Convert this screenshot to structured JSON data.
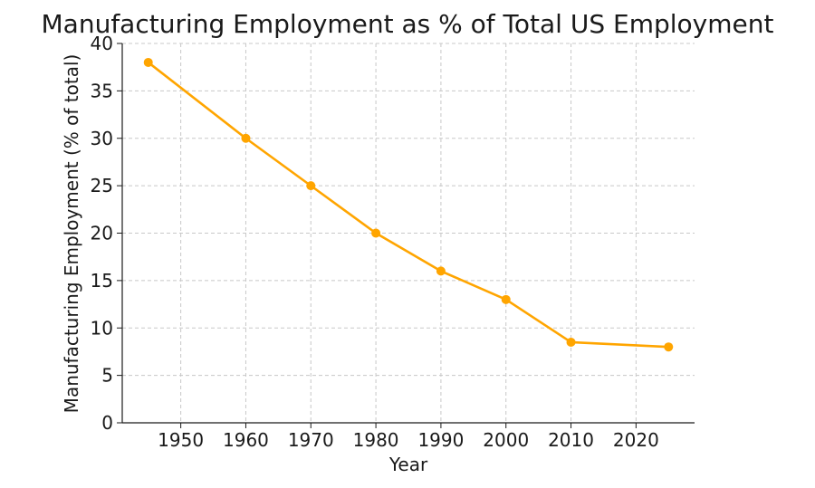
{
  "chart_data": {
    "type": "line",
    "title": "Manufacturing Employment as % of Total US Employment",
    "xlabel": "Year",
    "ylabel": "Manufacturing Employment (% of total)",
    "xlim": [
      1941,
      2029
    ],
    "ylim": [
      0,
      40
    ],
    "xticks": [
      1950,
      1960,
      1970,
      1980,
      1990,
      2000,
      2010,
      2020
    ],
    "yticks": [
      0,
      5,
      10,
      15,
      20,
      25,
      30,
      35,
      40
    ],
    "grid": true,
    "legend": "none",
    "series": [
      {
        "color": "#ffa500",
        "marker": "circle",
        "x": [
          1945,
          1960,
          1970,
          1980,
          1990,
          2000,
          2010,
          2025
        ],
        "y": [
          38,
          30,
          25,
          20,
          16,
          13,
          8.5,
          8
        ]
      }
    ]
  }
}
